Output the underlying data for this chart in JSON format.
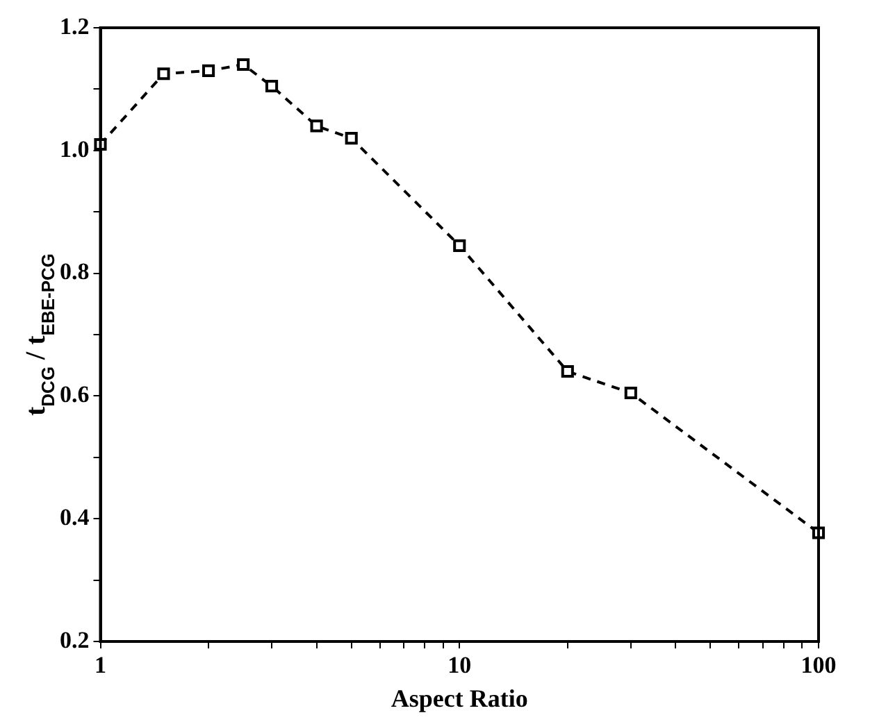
{
  "chart_data": {
    "type": "line",
    "xlabel": "Aspect Ratio",
    "ylabel": "t$_{DCG}$ / t$_{EBE-PCG}$",
    "x": [
      1,
      1.5,
      2,
      2.5,
      3,
      4,
      5,
      10,
      20,
      30,
      100
    ],
    "series": [
      {
        "color": "#000000",
        "values": [
          1.01,
          1.125,
          1.13,
          1.14,
          1.105,
          1.04,
          1.02,
          0.845,
          0.64,
          0.605,
          0.377
        ]
      }
    ],
    "log": "x",
    "xlim": [
      1,
      100
    ],
    "ylim": [
      0.2,
      1.2
    ],
    "xticks": [
      1,
      {
        "value": 2,
        "label": null
      },
      {
        "value": 3,
        "label": null
      },
      {
        "value": 4,
        "label": null
      },
      {
        "value": 5,
        "label": null
      },
      {
        "value": 6,
        "label": null
      },
      {
        "value": 7,
        "label": null
      },
      {
        "value": 8,
        "label": null
      },
      {
        "value": 9,
        "label": null
      },
      10,
      {
        "value": 20,
        "label": null
      },
      {
        "value": 30,
        "label": null
      },
      {
        "value": 40,
        "label": null
      },
      {
        "value": 50,
        "label": null
      },
      {
        "value": 60,
        "label": null
      },
      {
        "value": 70,
        "label": null
      },
      {
        "value": 80,
        "label": null
      },
      {
        "value": 90,
        "label": null
      },
      100
    ],
    "yticks": [
      0.2,
      {
        "value": 0.3,
        "label": null
      },
      0.4,
      {
        "value": 0.5,
        "label": null
      },
      0.6,
      {
        "value": 0.7,
        "label": null
      },
      0.8,
      {
        "value": 0.9,
        "label": null
      },
      {
        "value": 1,
        "label": "1.0"
      },
      {
        "value": 1.1,
        "label": null
      },
      1.2
    ],
    "grid": false,
    "legend": false,
    "marker": "square",
    "line_style": "dashed"
  }
}
